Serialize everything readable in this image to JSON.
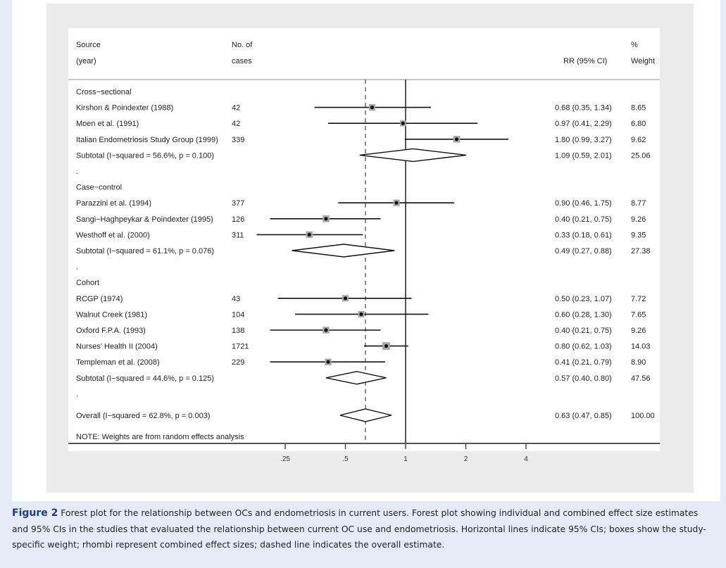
{
  "header": {
    "source_line1": "Source",
    "source_line2": "(year)",
    "cases_line1": "No. of",
    "cases_line2": "cases",
    "rr_label": "RR (95% CI)",
    "weight_line1": "%",
    "weight_line2": "Weight"
  },
  "note": "NOTE: Weights are from random effects analysis",
  "caption": {
    "label": "Figure 2",
    "text": "Forest plot for the relationship between OCs and endometriosis in current users. Forest plot showing individual and combined effect size estimates and 95% CIs in the studies that evaluated the relationship between current OC use and endometriosis. Horizontal lines indicate 95% CIs; boxes show the study-specific weight; rhombi represent combined effect sizes; dashed line indicates the overall estimate."
  },
  "chart_data": {
    "type": "forest",
    "x_scale": "log",
    "xlim": [
      0.16,
      6.5
    ],
    "x_ticks": [
      0.25,
      0.5,
      1,
      2,
      4
    ],
    "x_tick_labels": [
      ".25",
      ".5",
      "1",
      "2",
      "4"
    ],
    "null_line": 1,
    "overall_dashed_line": 0.63,
    "rows": [
      {
        "kind": "group",
        "label": "Cross−sectional"
      },
      {
        "kind": "study",
        "label": "Kirshon & Poindexter (1988)",
        "cases": "42",
        "rr": 0.68,
        "lo": 0.35,
        "hi": 1.34,
        "ci_text": "0.68 (0.35, 1.34)",
        "weight": "8.65"
      },
      {
        "kind": "study",
        "label": "Moen et al. (1991)",
        "cases": "42",
        "rr": 0.97,
        "lo": 0.41,
        "hi": 2.29,
        "ci_text": "0.97 (0.41, 2.29)",
        "weight": "6.80"
      },
      {
        "kind": "study",
        "label": "Italian Endometriosis Study Group (1999)",
        "cases": "339",
        "rr": 1.8,
        "lo": 0.99,
        "hi": 3.27,
        "ci_text": "1.80 (0.99, 3.27)",
        "weight": "9.62"
      },
      {
        "kind": "subtotal",
        "label": "Subtotal  (I−squared = 56.6%, p = 0.100)",
        "rr": 1.09,
        "lo": 0.59,
        "hi": 2.01,
        "ci_text": "1.09 (0.59, 2.01)",
        "weight": "25.06"
      },
      {
        "kind": "spacer",
        "label": "."
      },
      {
        "kind": "group",
        "label": "Case−control"
      },
      {
        "kind": "study",
        "label": "Parazzini et al. (1994)",
        "cases": "377",
        "rr": 0.9,
        "lo": 0.46,
        "hi": 1.75,
        "ci_text": "0.90 (0.46, 1.75)",
        "weight": "8.77"
      },
      {
        "kind": "study",
        "label": "Sangi−Haghpeykar & Poindexter (1995)",
        "cases": "126",
        "rr": 0.4,
        "lo": 0.21,
        "hi": 0.75,
        "ci_text": "0.40 (0.21, 0.75)",
        "weight": "9.26"
      },
      {
        "kind": "study",
        "label": "Westhoff et al. (2000)",
        "cases": "311",
        "rr": 0.33,
        "lo": 0.18,
        "hi": 0.61,
        "ci_text": "0.33 (0.18, 0.61)",
        "weight": "9.35"
      },
      {
        "kind": "subtotal",
        "label": "Subtotal  (I−squared = 61.1%, p = 0.076)",
        "rr": 0.49,
        "lo": 0.27,
        "hi": 0.88,
        "ci_text": "0.49 (0.27, 0.88)",
        "weight": "27.38"
      },
      {
        "kind": "spacer",
        "label": "."
      },
      {
        "kind": "group",
        "label": "Cohort"
      },
      {
        "kind": "study",
        "label": "RCGP (1974)",
        "cases": "43",
        "rr": 0.5,
        "lo": 0.23,
        "hi": 1.07,
        "ci_text": "0.50 (0.23, 1.07)",
        "weight": "7.72"
      },
      {
        "kind": "study",
        "label": "Walnut Creek (1981)",
        "cases": "104",
        "rr": 0.6,
        "lo": 0.28,
        "hi": 1.3,
        "ci_text": "0.60 (0.28, 1.30)",
        "weight": "7.65"
      },
      {
        "kind": "study",
        "label": "Oxford F.P.A. (1993)",
        "cases": "138",
        "rr": 0.4,
        "lo": 0.21,
        "hi": 0.75,
        "ci_text": "0.40 (0.21, 0.75)",
        "weight": "9.26"
      },
      {
        "kind": "study",
        "label": "Nurses' Health II (2004)",
        "cases": "1721",
        "rr": 0.8,
        "lo": 0.62,
        "hi": 1.03,
        "ci_text": "0.80 (0.62, 1.03)",
        "weight": "14.03"
      },
      {
        "kind": "study",
        "label": "Templeman et al. (2008)",
        "cases": "229",
        "rr": 0.41,
        "lo": 0.21,
        "hi": 0.79,
        "ci_text": "0.41 (0.21, 0.79)",
        "weight": "8.90"
      },
      {
        "kind": "subtotal",
        "label": "Subtotal  (I−squared = 44.6%, p = 0.125)",
        "rr": 0.57,
        "lo": 0.4,
        "hi": 0.8,
        "ci_text": "0.57 (0.40, 0.80)",
        "weight": "47.56"
      },
      {
        "kind": "spacer",
        "label": "."
      },
      {
        "kind": "overall",
        "label": "Overall  (I−squared = 62.8%, p = 0.003)",
        "rr": 0.63,
        "lo": 0.47,
        "hi": 0.85,
        "ci_text": "0.63 (0.47, 0.85)",
        "weight": "100.00"
      }
    ]
  }
}
